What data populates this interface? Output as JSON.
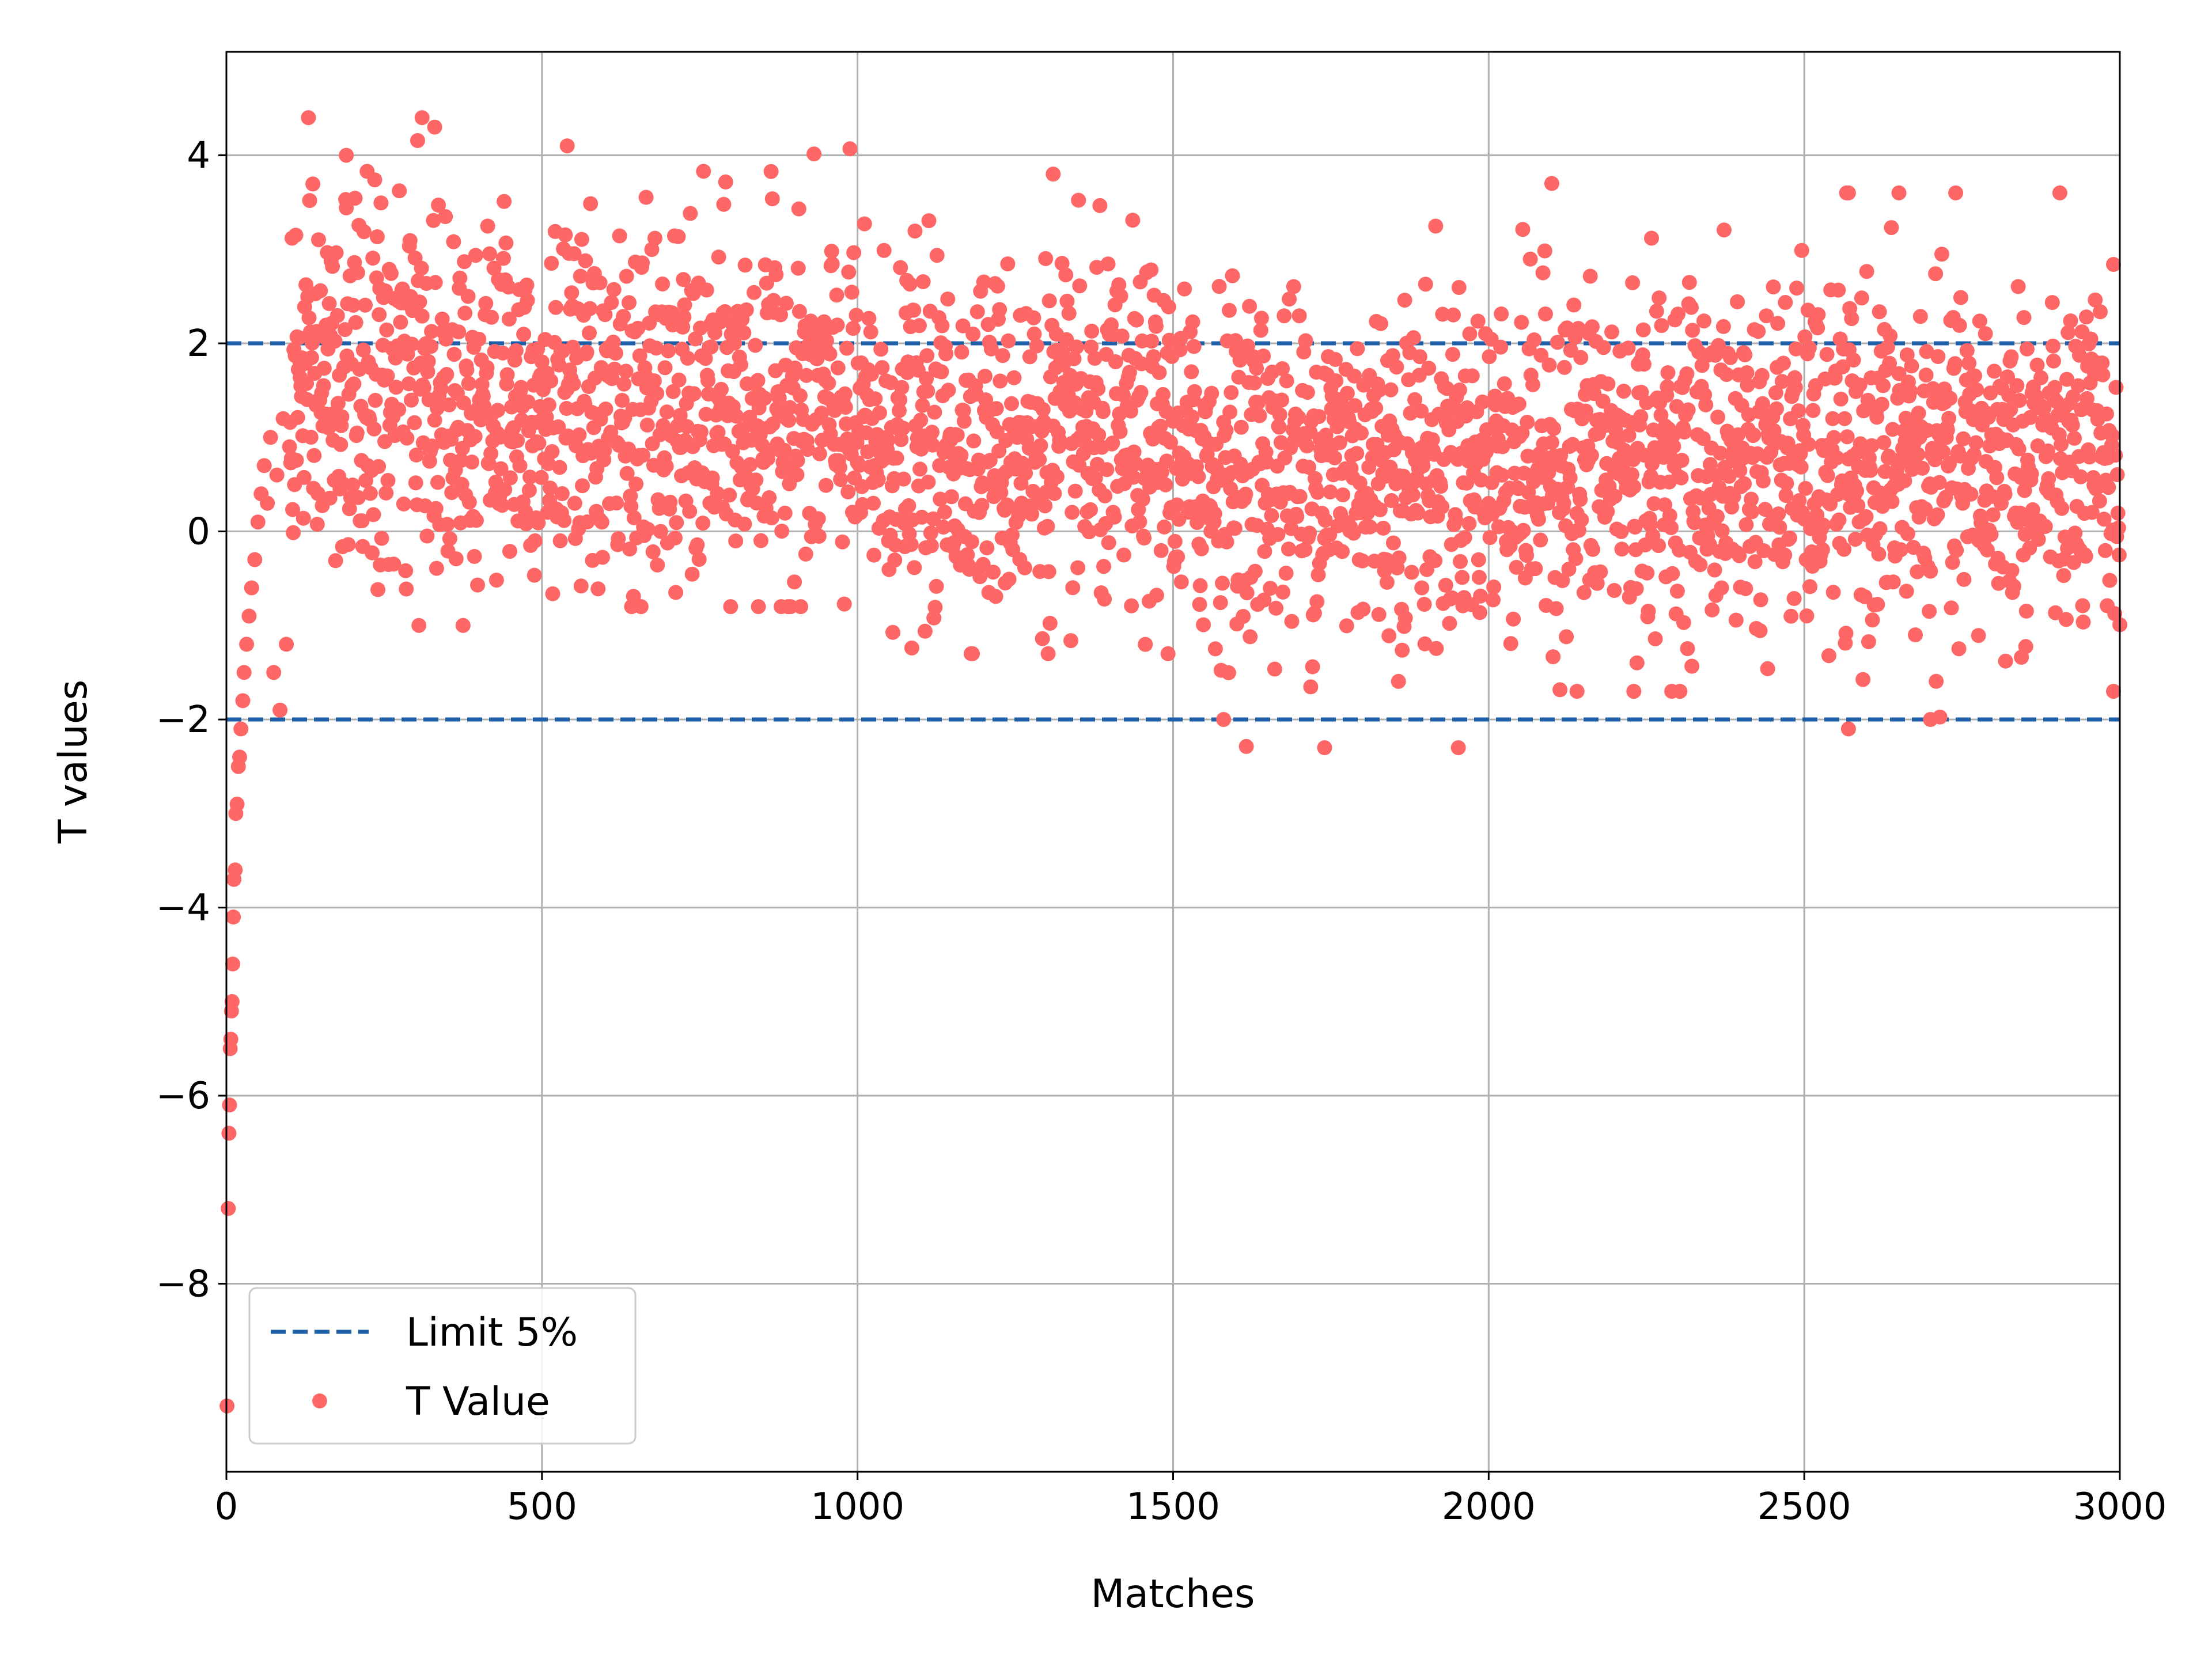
{
  "chart_data": {
    "type": "scatter",
    "xlabel": "Matches",
    "ylabel": "T values",
    "xlim": [
      0,
      3000
    ],
    "ylim": [
      -10,
      5.1
    ],
    "xticks": [
      0,
      500,
      1000,
      1500,
      2000,
      2500,
      3000
    ],
    "xtick_labels": [
      "0",
      "500",
      "1000",
      "1500",
      "2000",
      "2500",
      "3000"
    ],
    "yticks": [
      -8,
      -6,
      -4,
      -2,
      0,
      2,
      4
    ],
    "ytick_labels": [
      "−8",
      "−6",
      "−4",
      "−2",
      "0",
      "2",
      "4"
    ],
    "grid": true,
    "legend": {
      "placement": "lower-left",
      "entries": [
        "Limit 5%",
        "T Value"
      ]
    },
    "series": [
      {
        "name": "Limit 5%",
        "kind": "hline",
        "style": "dashed",
        "color": "#1f5fa8",
        "values": [
          2,
          -2
        ]
      },
      {
        "name": "T Value",
        "kind": "scatter",
        "color": "#ff6666",
        "n_points": 3000,
        "early_points": [
          [
            1,
            -9.3
          ],
          [
            3,
            -7.2
          ],
          [
            4,
            -6.4
          ],
          [
            5,
            -6.1
          ],
          [
            6,
            -5.5
          ],
          [
            7,
            -5.4
          ],
          [
            8,
            -5.1
          ],
          [
            9,
            -5.0
          ],
          [
            10,
            -4.6
          ],
          [
            11,
            -4.1
          ],
          [
            12,
            -3.7
          ],
          [
            14,
            -3.6
          ],
          [
            15,
            -3.0
          ],
          [
            17,
            -2.9
          ],
          [
            19,
            -2.5
          ],
          [
            21,
            -2.4
          ],
          [
            23,
            -2.1
          ],
          [
            26,
            -1.8
          ],
          [
            28,
            -1.5
          ],
          [
            32,
            -1.2
          ],
          [
            36,
            -0.9
          ],
          [
            40,
            -0.6
          ],
          [
            45,
            -0.3
          ],
          [
            50,
            0.1
          ],
          [
            55,
            0.4
          ],
          [
            60,
            0.7
          ],
          [
            65,
            0.3
          ],
          [
            70,
            1.0
          ],
          [
            75,
            -1.5
          ],
          [
            80,
            0.6
          ],
          [
            85,
            -1.9
          ],
          [
            90,
            1.2
          ],
          [
            95,
            -1.2
          ],
          [
            100,
            0.9
          ]
        ],
        "bulk": [
          {
            "x_range": [
              100,
              500
            ],
            "center": 1.5,
            "spread": 1.0,
            "min": -1.0,
            "max": 4.4
          },
          {
            "x_range": [
              500,
              1000
            ],
            "center": 1.25,
            "spread": 0.95,
            "min": -0.8,
            "max": 4.1
          },
          {
            "x_range": [
              1000,
              1500
            ],
            "center": 0.95,
            "spread": 0.9,
            "min": -1.3,
            "max": 3.8
          },
          {
            "x_range": [
              1500,
              2000
            ],
            "center": 0.7,
            "spread": 0.9,
            "min": -2.3,
            "max": 3.4
          },
          {
            "x_range": [
              2000,
              2500
            ],
            "center": 0.75,
            "spread": 0.9,
            "min": -1.7,
            "max": 3.7
          },
          {
            "x_range": [
              2500,
              3000
            ],
            "center": 0.7,
            "spread": 0.9,
            "min": -2.1,
            "max": 3.6
          }
        ],
        "notable_points": [
          [
            310,
            4.4
          ],
          [
            330,
            4.3
          ],
          [
            540,
            4.1
          ],
          [
            190,
            4.0
          ],
          [
            1310,
            3.8
          ],
          [
            2100,
            3.7
          ],
          [
            2650,
            3.6
          ],
          [
            2570,
            3.6
          ],
          [
            1580,
            -2.0
          ],
          [
            1740,
            -2.3
          ],
          [
            2570,
            -2.1
          ],
          [
            2700,
            -2.0
          ],
          [
            2990,
            -1.7
          ],
          [
            2140,
            -1.7
          ],
          [
            2230,
            -1.7
          ]
        ]
      }
    ]
  }
}
